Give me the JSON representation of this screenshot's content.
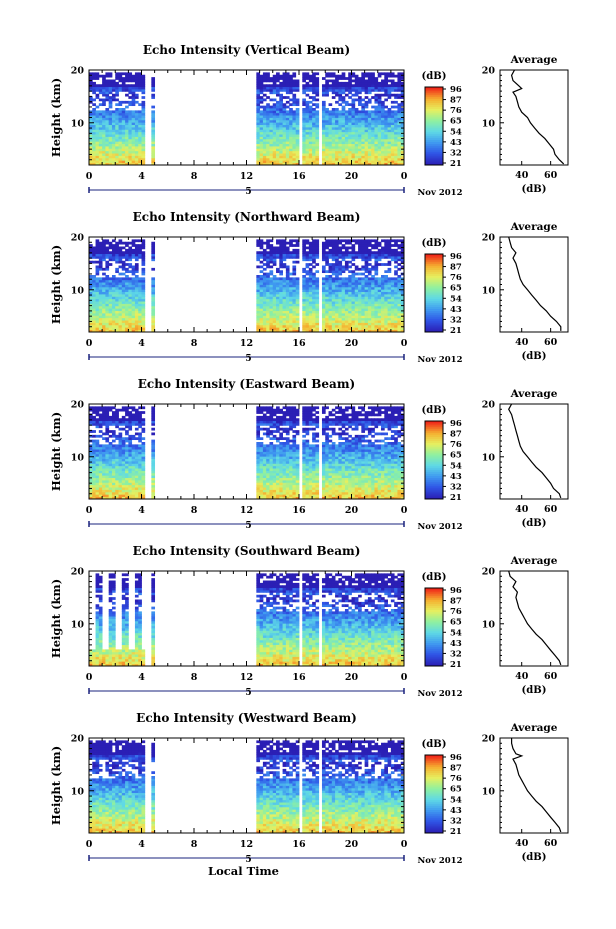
{
  "figure": {
    "shared_xlabel": "Local Time",
    "date_label": "Nov 2012",
    "day_marker": "5",
    "unit_label": "(dB)",
    "avg_title": "Average",
    "colorbar_ticks": [
      "96",
      "87",
      "76",
      "65",
      "54",
      "43",
      "32",
      "21"
    ],
    "colors": {
      "colorscale": [
        "#2b1fb5",
        "#2f55e6",
        "#3f9af0",
        "#5fd9e6",
        "#8ff0a0",
        "#e6f060",
        "#f5b030",
        "#f02a1a"
      ],
      "axis": "#000000",
      "day_marker_line": "#1a237e"
    }
  },
  "chart_data": [
    {
      "type": "heatmap",
      "title": "Echo Intensity (Vertical Beam)",
      "xlabel": "",
      "ylabel": "Height (km)",
      "x_ticks": [
        "0",
        "4",
        "8",
        "12",
        "16",
        "20",
        "0"
      ],
      "y_ticks": [
        "10",
        "20"
      ],
      "xlim": [
        0,
        24
      ],
      "ylim": [
        2,
        20
      ],
      "data_gaps_hours": [
        [
          4.3,
          4.7
        ],
        [
          5.0,
          12.8
        ],
        [
          16.0,
          16.3
        ],
        [
          17.5,
          17.7
        ]
      ],
      "profile": {
        "title": "Average",
        "xlabel": "(dB)",
        "x_ticks": [
          "40",
          "60"
        ],
        "y_ticks": [
          "10",
          "20"
        ],
        "xlim": [
          25,
          72
        ],
        "height_km": [
          2.2,
          3,
          4,
          5,
          6,
          7,
          8,
          9,
          10,
          11,
          12,
          13,
          14,
          15,
          15.8,
          16.5,
          17,
          18,
          19,
          20
        ],
        "db": [
          69,
          66,
          63,
          62,
          59,
          56,
          52,
          49,
          46,
          44,
          40,
          38,
          37,
          36,
          34,
          40,
          38,
          34,
          33,
          35
        ]
      }
    },
    {
      "type": "heatmap",
      "title": "Echo Intensity (Northward Beam)",
      "xlabel": "",
      "ylabel": "Height (km)",
      "x_ticks": [
        "0",
        "4",
        "8",
        "12",
        "16",
        "20",
        "0"
      ],
      "y_ticks": [
        "10",
        "20"
      ],
      "xlim": [
        0,
        24
      ],
      "ylim": [
        2,
        20
      ],
      "data_gaps_hours": [
        [
          4.3,
          4.7
        ],
        [
          5.0,
          12.8
        ],
        [
          16.0,
          16.3
        ],
        [
          17.5,
          17.7
        ]
      ],
      "profile": {
        "title": "Average",
        "xlabel": "(dB)",
        "x_ticks": [
          "40",
          "60"
        ],
        "y_ticks": [
          "10",
          "20"
        ],
        "xlim": [
          25,
          72
        ],
        "height_km": [
          2.2,
          3,
          4,
          5,
          6,
          7,
          8,
          9,
          10,
          11,
          12,
          13,
          14,
          15,
          16,
          17,
          18,
          19,
          20
        ],
        "db": [
          67,
          67,
          64,
          60,
          57,
          53,
          50,
          47,
          44,
          41,
          39,
          38,
          37,
          36,
          34,
          36,
          33,
          32,
          31
        ]
      }
    },
    {
      "type": "heatmap",
      "title": "Echo Intensity (Eastward Beam)",
      "xlabel": "",
      "ylabel": "Height (km)",
      "x_ticks": [
        "0",
        "4",
        "8",
        "12",
        "16",
        "20",
        "0"
      ],
      "y_ticks": [
        "10",
        "20"
      ],
      "xlim": [
        0,
        24
      ],
      "ylim": [
        2,
        20
      ],
      "data_gaps_hours": [
        [
          4.3,
          4.7
        ],
        [
          5.0,
          12.8
        ],
        [
          16.0,
          16.3
        ],
        [
          17.5,
          17.7
        ]
      ],
      "profile": {
        "title": "Average",
        "xlabel": "(dB)",
        "x_ticks": [
          "40",
          "60"
        ],
        "y_ticks": [
          "10",
          "20"
        ],
        "xlim": [
          25,
          72
        ],
        "height_km": [
          2.2,
          3,
          4,
          5,
          6,
          7,
          8,
          9,
          10,
          11,
          12,
          13,
          14,
          15,
          16,
          17,
          18,
          19,
          20
        ],
        "db": [
          67,
          66,
          62,
          60,
          57,
          54,
          50,
          47,
          44,
          41,
          39,
          38,
          37,
          36,
          35,
          34,
          33,
          31,
          33
        ]
      }
    },
    {
      "type": "heatmap",
      "title": "Echo Intensity (Southward Beam)",
      "xlabel": "",
      "ylabel": "Height (km)",
      "x_ticks": [
        "0",
        "4",
        "8",
        "12",
        "16",
        "20",
        "0"
      ],
      "y_ticks": [
        "10",
        "20"
      ],
      "xlim": [
        0,
        24
      ],
      "ylim": [
        2,
        20
      ],
      "data_gaps_hours": [
        [
          4.3,
          4.7
        ],
        [
          5.0,
          12.8
        ],
        [
          16.0,
          16.3
        ],
        [
          17.5,
          17.7
        ]
      ],
      "profile": {
        "title": "Average",
        "xlabel": "(dB)",
        "x_ticks": [
          "40",
          "60"
        ],
        "y_ticks": [
          "10",
          "20"
        ],
        "xlim": [
          25,
          72
        ],
        "height_km": [
          2.2,
          3,
          4,
          5,
          6,
          7,
          8,
          9,
          10,
          11,
          12,
          13,
          14,
          15,
          16,
          17,
          18,
          19,
          20
        ],
        "db": [
          67,
          66,
          63,
          60,
          57,
          54,
          50,
          47,
          44,
          42,
          40,
          38,
          37,
          36,
          37,
          34,
          36,
          32,
          31
        ]
      }
    },
    {
      "type": "heatmap",
      "title": "Echo Intensity (Westward Beam)",
      "xlabel": "Local Time",
      "ylabel": "Height (km)",
      "x_ticks": [
        "0",
        "4",
        "8",
        "12",
        "16",
        "20",
        "0"
      ],
      "y_ticks": [
        "10",
        "20"
      ],
      "xlim": [
        0,
        24
      ],
      "ylim": [
        2,
        20
      ],
      "data_gaps_hours": [
        [
          4.3,
          4.7
        ],
        [
          5.0,
          12.8
        ],
        [
          16.0,
          16.3
        ],
        [
          17.5,
          17.7
        ]
      ],
      "profile": {
        "title": "Average",
        "xlabel": "(dB)",
        "x_ticks": [
          "40",
          "60"
        ],
        "y_ticks": [
          "10",
          "20"
        ],
        "xlim": [
          25,
          72
        ],
        "height_km": [
          2.2,
          3,
          4,
          5,
          6,
          7,
          8,
          9,
          10,
          11,
          12,
          13,
          14,
          15,
          16,
          16.6,
          17,
          18,
          19,
          20
        ],
        "db": [
          67,
          66,
          63,
          60,
          57,
          54,
          50,
          47,
          44,
          42,
          40,
          38,
          37,
          36,
          34,
          40,
          36,
          34,
          33,
          33
        ]
      }
    }
  ]
}
